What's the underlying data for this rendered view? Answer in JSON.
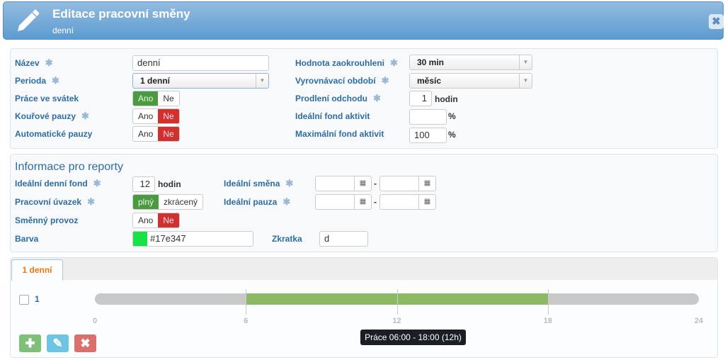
{
  "header": {
    "title": "Editace pracovní směny",
    "subtitle": "denní",
    "icon": "pencil-icon",
    "close_icon": "close-icon"
  },
  "general": {
    "name": {
      "label": "Název",
      "value": "denní"
    },
    "period": {
      "label": "Perioda",
      "value": "1 denní"
    },
    "holiday_work": {
      "label": "Práce ve svátek",
      "yes": "Ano",
      "no": "Ne",
      "selected": "Ano"
    },
    "smoke_breaks": {
      "label": "Kouřové pauzy",
      "yes": "Ano",
      "no": "Ne",
      "selected": "Ne"
    },
    "auto_breaks": {
      "label": "Automatické pauzy",
      "yes": "Ano",
      "no": "Ne",
      "selected": "Ne"
    },
    "rounding": {
      "label": "Hodnota zaokrouhleni",
      "value": "30 min"
    },
    "balancing": {
      "label": "Vyrovnávací období",
      "value": "měsíc"
    },
    "leave_delay": {
      "label": "Prodlení odchodu",
      "value": "1",
      "unit": "hodin"
    },
    "ideal_activity": {
      "label": "Ideální fond aktivit",
      "value": "",
      "unit": "%"
    },
    "max_activity": {
      "label": "Maximální fond aktivit",
      "value": "100",
      "unit": "%"
    }
  },
  "reports": {
    "title": "Informace pro reporty",
    "daily_fund": {
      "label": "Ideální denní fond",
      "value": "12",
      "unit": "hodin"
    },
    "contract": {
      "label": "Pracovní úvazek",
      "full": "plný",
      "part": "zkrácený",
      "selected": "plný"
    },
    "shift_op": {
      "label": "Směnný provoz",
      "yes": "Ano",
      "no": "Ne",
      "selected": "Ne"
    },
    "color": {
      "label": "Barva",
      "value": "#17e347",
      "swatch": "#17e347"
    },
    "ideal_shift": {
      "label": "Ideální směna",
      "from": "",
      "to": "",
      "sep": "-"
    },
    "ideal_break": {
      "label": "Ideální pauza",
      "from": "",
      "to": "",
      "sep": "-"
    },
    "abbr": {
      "label": "Zkratka",
      "value": "d"
    }
  },
  "schedule": {
    "tab": "1 denní",
    "row_label": "1",
    "ticks": [
      "0",
      "6",
      "12",
      "18",
      "24"
    ],
    "segment": {
      "start": 6,
      "end": 18,
      "color": "#8cb963"
    },
    "tooltip": "Práce 06:00 - 18:00 (12h)",
    "buttons": {
      "add": "add-icon",
      "edit": "pencil-icon",
      "delete": "delete-icon"
    }
  }
}
